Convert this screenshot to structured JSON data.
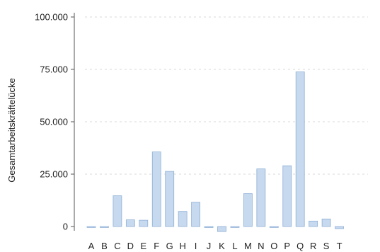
{
  "chart_data": {
    "type": "bar",
    "title": "",
    "xlabel": "",
    "ylabel": "Gesamtarbeitskräftelücke",
    "ylim": [
      -3000,
      100000
    ],
    "yticks": [
      0,
      25000,
      50000,
      75000,
      100000
    ],
    "ytick_labels": [
      "0",
      "25.000",
      "50.000",
      "75.000",
      "100.000"
    ],
    "grid": "horizontal-dashed",
    "categories": [
      "A",
      "B",
      "C",
      "D",
      "E",
      "F",
      "G",
      "H",
      "I",
      "J",
      "K",
      "L",
      "M",
      "N",
      "O",
      "P",
      "Q",
      "R",
      "S",
      "T"
    ],
    "values": [
      -300,
      -200,
      14700,
      3200,
      3000,
      35600,
      26300,
      7200,
      11600,
      -500,
      -2400,
      0,
      15700,
      27500,
      0,
      29000,
      73800,
      2600,
      3600,
      -1000
    ],
    "colors": {
      "bar_fill": "#c6d9ee",
      "bar_stroke": "#8fb0d6",
      "axis": "#555555",
      "grid": "#cccccc"
    }
  }
}
